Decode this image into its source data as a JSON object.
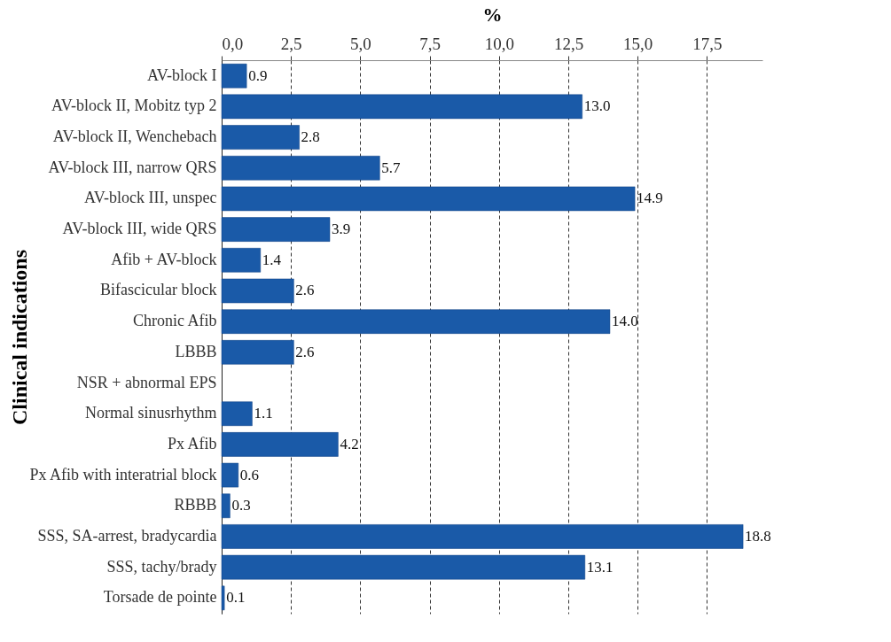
{
  "chart_data": {
    "type": "bar",
    "orientation": "horizontal",
    "xlabel": "%",
    "ylabel": "Clinical indications",
    "categories": [
      "AV-block I",
      "AV-block II, Mobitz typ 2",
      "AV-block II, Wenchebach",
      "AV-block III, narrow QRS",
      "AV-block III, unspec",
      "AV-block III, wide QRS",
      "Afib + AV-block",
      "Bifascicular block",
      "Chronic Afib",
      "LBBB",
      "NSR + abnormal EPS",
      "Normal sinusrhythm",
      "Px Afib",
      "Px Afib with interatrial block",
      "RBBB",
      "SSS, SA-arrest, bradycardia",
      "SSS, tachy/brady",
      "Torsade de pointe"
    ],
    "values": [
      0.9,
      13.0,
      2.8,
      5.7,
      14.9,
      3.9,
      1.4,
      2.6,
      14.0,
      2.6,
      null,
      1.1,
      4.2,
      0.6,
      0.3,
      18.8,
      13.1,
      0.1
    ],
    "value_labels": [
      "0.9",
      "13.0",
      "2.8",
      "5.7",
      "14.9",
      "3.9",
      "1.4",
      "2.6",
      "14.0",
      "2.6",
      null,
      "1.1",
      "4.2",
      "0.6",
      "0.3",
      "18.8",
      "13.1",
      "0.1"
    ],
    "color": "#1a5aa8",
    "xlim": [
      0,
      19.5
    ],
    "xticks": [
      {
        "value": 0,
        "label": "0,0"
      },
      {
        "value": 2.5,
        "label": "2,5"
      },
      {
        "value": 5,
        "label": "5,0"
      },
      {
        "value": 7.5,
        "label": "7,5"
      },
      {
        "value": 10,
        "label": "10,0"
      },
      {
        "value": 12.5,
        "label": "12,5"
      },
      {
        "value": 15,
        "label": "15,0"
      },
      {
        "value": 17.5,
        "label": "17,5"
      }
    ],
    "grid": "x",
    "line_style": "dashed"
  }
}
